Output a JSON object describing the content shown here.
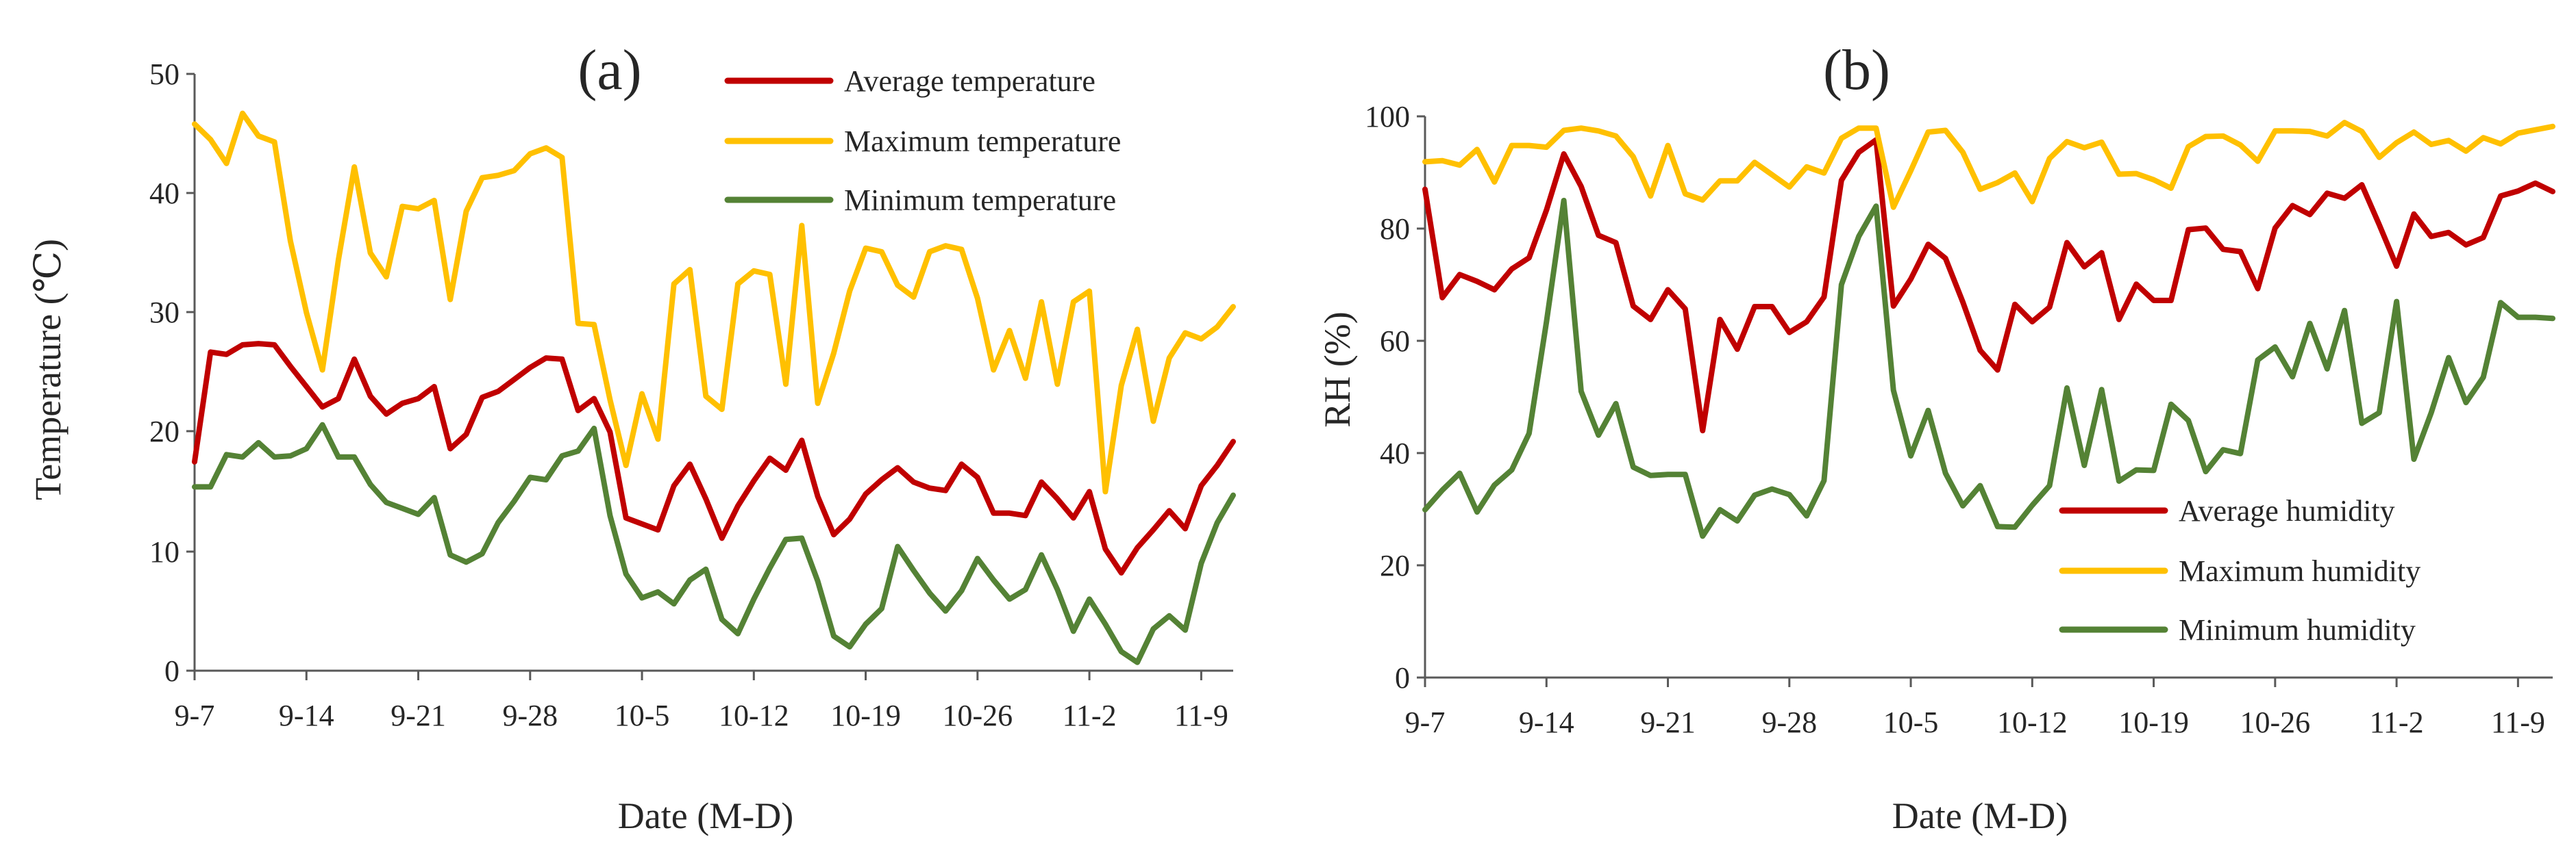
{
  "chart_data": [
    {
      "type": "line",
      "panel_label": "(a)",
      "xlabel": "Date (M-D)",
      "ylabel": "Temperature (℃)",
      "ylim": [
        0,
        50
      ],
      "yticks": [
        "0",
        "10",
        "20",
        "30",
        "40",
        "50"
      ],
      "xticks": [
        "9-7",
        "9-14",
        "9-21",
        "9-28",
        "10-5",
        "10-12",
        "10-19",
        "10-26",
        "11-2",
        "11-9"
      ],
      "grid": false,
      "legend": "top-right",
      "series": [
        {
          "name": "Average temperature",
          "color": "#C00000",
          "values": [
            17.5,
            26.7,
            26.5,
            27.3,
            27.4,
            27.3,
            25.5,
            23.8,
            22.1,
            22.8,
            26.1,
            23.0,
            21.5,
            22.4,
            22.8,
            23.8,
            18.6,
            19.8,
            22.9,
            23.4,
            24.4,
            25.4,
            26.2,
            26.1,
            21.8,
            22.8,
            20.0,
            12.8,
            12.3,
            11.8,
            15.5,
            17.3,
            14.4,
            11.1,
            13.8,
            15.9,
            17.8,
            16.8,
            19.3,
            14.6,
            11.4,
            12.7,
            14.8,
            16.0,
            17.0,
            15.8,
            15.3,
            15.1,
            17.3,
            16.2,
            13.2,
            13.2,
            13.0,
            15.8,
            14.4,
            12.8,
            15.0,
            10.2,
            8.2,
            10.3,
            11.8,
            13.4,
            11.9,
            15.5,
            17.2,
            19.2
          ]
        },
        {
          "name": "Maximum temperature",
          "color": "#FFC000",
          "values": [
            45.8,
            44.5,
            42.5,
            46.7,
            44.8,
            44.3,
            36.0,
            30.0,
            25.2,
            34.4,
            42.2,
            35.0,
            33.0,
            38.9,
            38.7,
            39.4,
            31.1,
            38.5,
            41.3,
            41.5,
            41.9,
            43.3,
            43.8,
            43.0,
            29.1,
            29.0,
            22.7,
            17.2,
            23.2,
            19.4,
            32.4,
            33.6,
            23.0,
            21.9,
            32.4,
            33.5,
            33.2,
            24.0,
            37.3,
            22.4,
            26.6,
            31.8,
            35.4,
            35.1,
            32.3,
            31.3,
            35.1,
            35.6,
            35.3,
            31.2,
            25.2,
            28.5,
            24.5,
            30.9,
            24.0,
            30.9,
            31.8,
            15.0,
            23.9,
            28.6,
            20.9,
            26.2,
            28.3,
            27.8,
            28.8,
            30.5
          ]
        },
        {
          "name": "Minimum temperature",
          "color": "#548235",
          "values": [
            15.4,
            15.4,
            18.1,
            17.9,
            19.1,
            17.9,
            18.0,
            18.6,
            20.6,
            17.9,
            17.9,
            15.6,
            14.1,
            13.6,
            13.1,
            14.5,
            9.7,
            9.1,
            9.8,
            12.4,
            14.2,
            16.2,
            16.0,
            18.0,
            18.4,
            20.3,
            13.0,
            8.1,
            6.1,
            6.6,
            5.6,
            7.6,
            8.5,
            4.3,
            3.1,
            6.0,
            8.6,
            11.0,
            11.1,
            7.5,
            2.9,
            2.0,
            3.9,
            5.2,
            10.4,
            8.4,
            6.5,
            5.0,
            6.7,
            9.4,
            7.6,
            6.0,
            6.8,
            9.7,
            6.8,
            3.3,
            6.0,
            3.9,
            1.6,
            0.7,
            3.5,
            4.6,
            3.4,
            9.0,
            12.4,
            14.7
          ]
        }
      ]
    },
    {
      "type": "line",
      "panel_label": "(b)",
      "xlabel": "Date (M-D)",
      "ylabel": "RH (%)",
      "ylim": [
        0,
        100
      ],
      "yticks": [
        "0",
        "20",
        "40",
        "60",
        "80",
        "100"
      ],
      "xticks": [
        "9-7",
        "9-14",
        "9-21",
        "9-28",
        "10-5",
        "10-12",
        "10-19",
        "10-26",
        "11-2",
        "11-9"
      ],
      "grid": false,
      "legend": "bottom-right",
      "series": [
        {
          "name": "Average humidity",
          "color": "#C00000",
          "values": [
            87.0,
            67.7,
            71.8,
            70.6,
            69.1,
            72.8,
            74.8,
            83.3,
            93.3,
            87.5,
            78.8,
            77.5,
            66.2,
            63.8,
            69.1,
            65.7,
            44.0,
            63.8,
            58.5,
            66.1,
            66.1,
            61.5,
            63.4,
            67.8,
            88.6,
            93.6,
            95.8,
            66.2,
            71.0,
            77.2,
            74.7,
            66.9,
            58.3,
            54.8,
            66.5,
            63.4,
            66.0,
            77.5,
            73.2,
            75.7,
            63.8,
            70.1,
            67.2,
            67.2,
            79.8,
            80.1,
            76.3,
            75.9,
            69.3,
            80.1,
            84.1,
            82.5,
            86.3,
            85.4,
            87.8,
            80.7,
            73.3,
            82.6,
            78.6,
            79.3,
            77.1,
            78.4,
            85.8,
            86.7,
            88.1,
            86.6
          ]
        },
        {
          "name": "Maximum humidity",
          "color": "#FFC000",
          "values": [
            91.9,
            92.1,
            91.3,
            94.1,
            88.3,
            94.8,
            94.8,
            94.5,
            97.5,
            97.9,
            97.4,
            96.5,
            92.8,
            85.8,
            94.8,
            86.2,
            85.1,
            88.5,
            88.5,
            91.8,
            89.6,
            87.4,
            91.0,
            89.9,
            96.1,
            97.9,
            97.9,
            83.8,
            90.3,
            97.2,
            97.5,
            93.6,
            87.0,
            88.2,
            89.9,
            84.8,
            92.5,
            95.5,
            94.4,
            95.4,
            89.7,
            89.8,
            88.7,
            87.2,
            94.6,
            96.4,
            96.5,
            94.9,
            92.0,
            97.4,
            97.4,
            97.3,
            96.5,
            98.9,
            97.3,
            92.7,
            95.3,
            97.2,
            95.0,
            95.7,
            93.8,
            96.2,
            95.1,
            97.0,
            97.6,
            98.2
          ]
        },
        {
          "name": "Minimum humidity",
          "color": "#548235",
          "values": [
            29.9,
            33.4,
            36.4,
            29.5,
            34.3,
            37.0,
            43.5,
            63.4,
            85.0,
            51.0,
            43.2,
            48.8,
            37.5,
            36.0,
            36.2,
            36.2,
            25.2,
            29.9,
            27.9,
            32.5,
            33.6,
            32.6,
            28.8,
            35.1,
            70.0,
            78.6,
            84.0,
            51.2,
            39.5,
            47.6,
            36.4,
            30.6,
            34.2,
            26.9,
            26.8,
            30.7,
            34.2,
            51.6,
            37.8,
            51.3,
            35.0,
            37.0,
            36.9,
            48.7,
            45.8,
            36.7,
            40.6,
            39.9,
            56.6,
            58.9,
            53.6,
            63.1,
            55.0,
            65.4,
            45.3,
            47.2,
            67.0,
            38.9,
            47.2,
            57.0,
            49.0,
            53.5,
            66.8,
            64.2,
            64.2,
            64.0
          ]
        }
      ]
    }
  ]
}
